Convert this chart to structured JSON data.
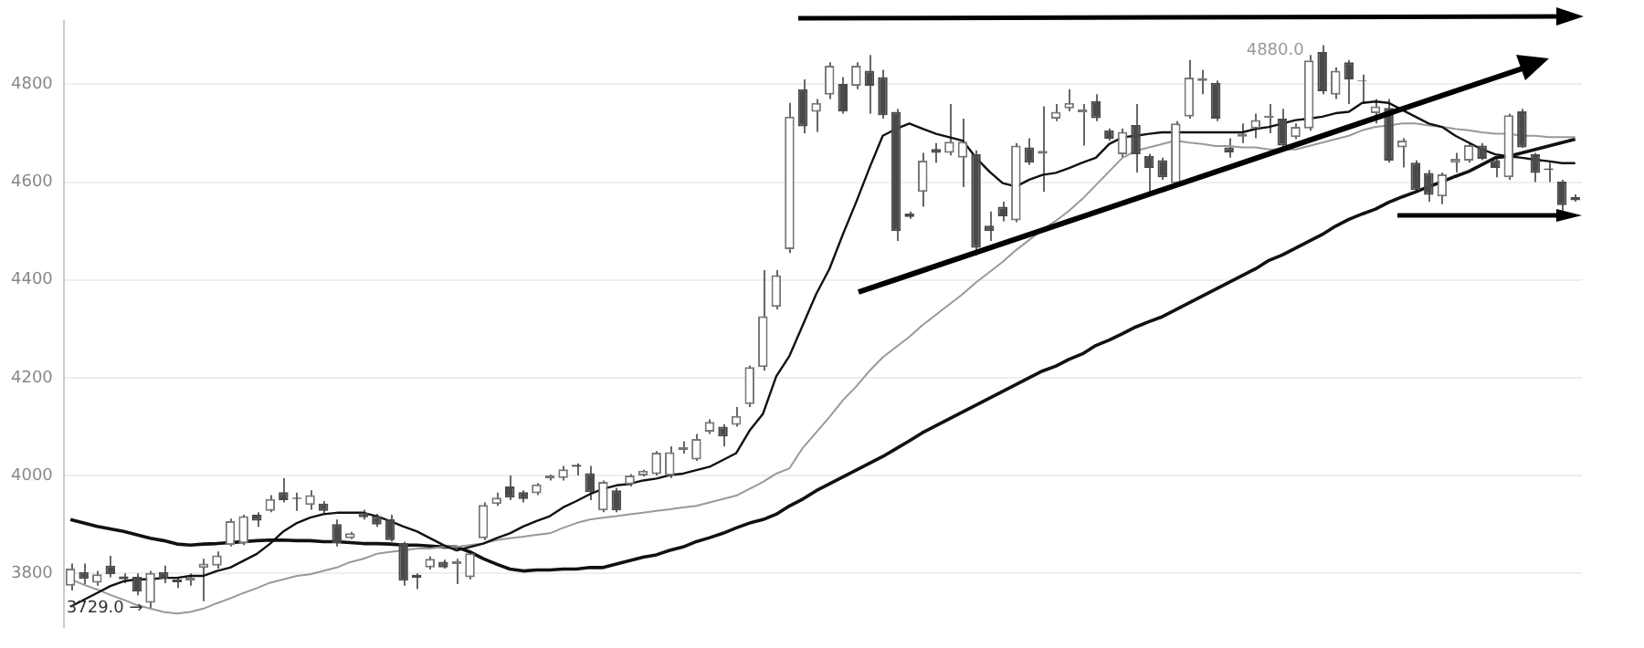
{
  "chart_data": {
    "type": "candlestick",
    "tick_labels": "y",
    "grid": "y",
    "ylim": [
      3690,
      4930
    ],
    "yticks": [
      3800,
      4000,
      4200,
      4400,
      4600,
      4800
    ],
    "categories": [
      null,
      null,
      null,
      null,
      null,
      null,
      null,
      null,
      null,
      null,
      null,
      null,
      null,
      null,
      null,
      null,
      null,
      null,
      null,
      null,
      null,
      null,
      null,
      null,
      null,
      null,
      null,
      null,
      null,
      null,
      null,
      null,
      null,
      null,
      null,
      null,
      null,
      null,
      null,
      null,
      null,
      null,
      null,
      null,
      null,
      null,
      null,
      null,
      null,
      null,
      null,
      null,
      null,
      null,
      null,
      null,
      null,
      null,
      null,
      null,
      null,
      null,
      null,
      null,
      null,
      null,
      null,
      null,
      null,
      null,
      null,
      null,
      null,
      null,
      null,
      null,
      null,
      null,
      null,
      null,
      null,
      null,
      null,
      null,
      null,
      null,
      null,
      null,
      null,
      null,
      null,
      null,
      null,
      null,
      null,
      null,
      null,
      null,
      null,
      null,
      null,
      null,
      null,
      null,
      null,
      null,
      null,
      null,
      null,
      null,
      null,
      null,
      null,
      null
    ],
    "ohlc": [
      [
        3775,
        3820,
        3765,
        3810
      ],
      [
        3803,
        3820,
        3778,
        3789
      ],
      [
        3781,
        3805,
        3775,
        3798
      ],
      [
        3816,
        3836,
        3792,
        3798
      ],
      [
        3794,
        3800,
        3780,
        3788
      ],
      [
        3793,
        3800,
        3755,
        3763
      ],
      [
        3740,
        3805,
        3729,
        3801
      ],
      [
        3803,
        3816,
        3780,
        3789
      ],
      [
        3788,
        3790,
        3770,
        3782
      ],
      [
        3785,
        3800,
        3775,
        3791
      ],
      [
        3811,
        3830,
        3743,
        3820
      ],
      [
        3816,
        3845,
        3810,
        3837
      ],
      [
        3858,
        3912,
        3855,
        3907
      ],
      [
        3861,
        3920,
        3858,
        3917
      ],
      [
        3920,
        3925,
        3895,
        3908
      ],
      [
        3928,
        3960,
        3925,
        3952
      ],
      [
        3966,
        3995,
        3945,
        3950
      ],
      [
        3955,
        3965,
        3928,
        3952
      ],
      [
        3940,
        3970,
        3930,
        3960
      ],
      [
        3943,
        3948,
        3920,
        3928
      ],
      [
        3901,
        3910,
        3855,
        3862
      ],
      [
        3872,
        3885,
        3870,
        3882
      ],
      [
        3924,
        3930,
        3910,
        3915
      ],
      [
        3917,
        3922,
        3895,
        3900
      ],
      [
        3911,
        3920,
        3865,
        3868
      ],
      [
        3862,
        3865,
        3775,
        3785
      ],
      [
        3797,
        3800,
        3768,
        3791
      ],
      [
        3812,
        3835,
        3808,
        3830
      ],
      [
        3824,
        3828,
        3810,
        3812
      ],
      [
        3819,
        3830,
        3778,
        3825
      ],
      [
        3792,
        3845,
        3788,
        3841
      ],
      [
        3872,
        3945,
        3868,
        3940
      ],
      [
        3942,
        3965,
        3938,
        3955
      ],
      [
        3978,
        4000,
        3950,
        3955
      ],
      [
        3966,
        3970,
        3945,
        3952
      ],
      [
        3964,
        3985,
        3960,
        3982
      ],
      [
        3994,
        4002,
        3990,
        4000
      ],
      [
        3995,
        4020,
        3990,
        4013
      ],
      [
        4022,
        4025,
        4000,
        4018
      ],
      [
        4005,
        4020,
        3950,
        3966
      ],
      [
        3929,
        3990,
        3925,
        3987
      ],
      [
        3970,
        3975,
        3925,
        3929
      ],
      [
        3982,
        4003,
        3978,
        4000
      ],
      [
        4000,
        4012,
        3998,
        4010
      ],
      [
        4003,
        4050,
        4000,
        4047
      ],
      [
        4000,
        4060,
        3995,
        4048
      ],
      [
        4052,
        4070,
        4045,
        4058
      ],
      [
        4033,
        4085,
        4030,
        4075
      ],
      [
        4090,
        4115,
        4085,
        4110
      ],
      [
        4100,
        4105,
        4060,
        4080
      ],
      [
        4104,
        4140,
        4100,
        4122
      ],
      [
        4146,
        4225,
        4140,
        4222
      ],
      [
        4222,
        4420,
        4215,
        4326
      ],
      [
        4345,
        4420,
        4340,
        4410
      ],
      [
        4463,
        4762,
        4455,
        4734
      ],
      [
        4790,
        4810,
        4700,
        4714
      ],
      [
        4744,
        4770,
        4703,
        4762
      ],
      [
        4779,
        4845,
        4770,
        4838
      ],
      [
        4801,
        4815,
        4740,
        4745
      ],
      [
        4797,
        4845,
        4790,
        4838
      ],
      [
        4828,
        4860,
        4740,
        4797
      ],
      [
        4815,
        4830,
        4730,
        4737
      ],
      [
        4744,
        4750,
        4480,
        4500
      ],
      [
        4536,
        4540,
        4525,
        4529
      ],
      [
        4580,
        4660,
        4550,
        4644
      ],
      [
        4668,
        4680,
        4640,
        4660
      ],
      [
        4660,
        4760,
        4655,
        4683
      ],
      [
        4650,
        4730,
        4590,
        4683
      ],
      [
        4657,
        4665,
        4450,
        4466
      ],
      [
        4511,
        4540,
        4480,
        4500
      ],
      [
        4550,
        4560,
        4520,
        4530
      ],
      [
        4522,
        4680,
        4518,
        4675
      ],
      [
        4671,
        4690,
        4635,
        4640
      ],
      [
        4658,
        4755,
        4580,
        4664
      ],
      [
        4730,
        4760,
        4725,
        4744
      ],
      [
        4751,
        4790,
        4745,
        4762
      ],
      [
        4743,
        4760,
        4675,
        4749
      ],
      [
        4766,
        4780,
        4725,
        4731
      ],
      [
        4706,
        4710,
        4685,
        4689
      ],
      [
        4657,
        4710,
        4650,
        4703
      ],
      [
        4717,
        4760,
        4620,
        4657
      ],
      [
        4654,
        4658,
        4580,
        4629
      ],
      [
        4645,
        4650,
        4605,
        4610
      ],
      [
        4598,
        4725,
        4595,
        4720
      ],
      [
        4734,
        4850,
        4730,
        4814
      ],
      [
        4807,
        4830,
        4780,
        4813
      ],
      [
        4803,
        4808,
        4725,
        4730
      ],
      [
        4671,
        4690,
        4650,
        4661
      ],
      [
        4693,
        4720,
        4680,
        4699
      ],
      [
        4710,
        4740,
        4690,
        4727
      ],
      [
        4732,
        4760,
        4700,
        4736
      ],
      [
        4730,
        4750,
        4670,
        4675
      ],
      [
        4692,
        4720,
        4688,
        4713
      ],
      [
        4710,
        4860,
        4705,
        4849
      ],
      [
        4866,
        4880,
        4780,
        4786
      ],
      [
        4779,
        4835,
        4770,
        4828
      ],
      [
        4845,
        4850,
        4760,
        4810
      ],
      [
        4808,
        4820,
        4760,
        4806
      ],
      [
        4741,
        4770,
        4720,
        4755
      ],
      [
        4752,
        4770,
        4640,
        4644
      ],
      [
        4671,
        4690,
        4630,
        4685
      ],
      [
        4640,
        4645,
        4580,
        4584
      ],
      [
        4619,
        4625,
        4560,
        4574
      ],
      [
        4571,
        4620,
        4555,
        4616
      ],
      [
        4640,
        4660,
        4620,
        4648
      ],
      [
        4644,
        4680,
        4640,
        4676
      ],
      [
        4675,
        4680,
        4645,
        4648
      ],
      [
        4645,
        4650,
        4610,
        4629
      ],
      [
        4610,
        4740,
        4605,
        4737
      ],
      [
        4745,
        4750,
        4670,
        4671
      ],
      [
        4657,
        4660,
        4600,
        4619
      ],
      [
        4628,
        4640,
        4600,
        4625
      ],
      [
        4601,
        4605,
        4540,
        4553
      ],
      [
        4570,
        4575,
        4560,
        4563
      ]
    ],
    "series": [
      {
        "type": "line",
        "color": "#111111",
        "values": [
          3732,
          3746,
          3760,
          3774,
          3784,
          3788,
          3788,
          3791,
          3791,
          3795,
          3795,
          3805,
          3812,
          3826,
          3840,
          3861,
          3886,
          3903,
          3914,
          3921,
          3924,
          3924,
          3924,
          3917,
          3907,
          3896,
          3886,
          3872,
          3858,
          3847,
          3854,
          3861,
          3872,
          3882,
          3896,
          3907,
          3917,
          3935,
          3948,
          3962,
          3973,
          3980,
          3983,
          3990,
          3994,
          4001,
          4004,
          4011,
          4018,
          4032,
          4046,
          4092,
          4126,
          4203,
          4245,
          4308,
          4371,
          4423,
          4493,
          4559,
          4629,
          4695,
          4709,
          4720,
          4709,
          4699,
          4692,
          4685,
          4650,
          4622,
          4598,
          4591,
          4605,
          4615,
          4619,
          4629,
          4640,
          4650,
          4678,
          4692,
          4695,
          4699,
          4702,
          4702,
          4702,
          4702,
          4702,
          4702,
          4702,
          4709,
          4713,
          4720,
          4727,
          4730,
          4734,
          4741,
          4744,
          4762,
          4765,
          4762,
          4748,
          4734,
          4720,
          4713,
          4695,
          4681,
          4667,
          4657,
          4653,
          4650,
          4646,
          4643,
          4639,
          4639
        ]
      },
      {
        "type": "line",
        "color": "#999999",
        "values": [
          3788,
          3777,
          3767,
          3756,
          3746,
          3735,
          3728,
          3721,
          3718,
          3721,
          3728,
          3739,
          3749,
          3760,
          3770,
          3781,
          3788,
          3795,
          3798,
          3805,
          3812,
          3823,
          3830,
          3840,
          3844,
          3847,
          3851,
          3851,
          3854,
          3854,
          3858,
          3861,
          3868,
          3872,
          3875,
          3879,
          3882,
          3893,
          3903,
          3910,
          3914,
          3917,
          3921,
          3924,
          3928,
          3931,
          3935,
          3938,
          3945,
          3952,
          3959,
          3973,
          3987,
          4004,
          4015,
          4057,
          4088,
          4120,
          4154,
          4182,
          4214,
          4242,
          4263,
          4284,
          4308,
          4329,
          4350,
          4371,
          4395,
          4416,
          4437,
          4461,
          4482,
          4503,
          4521,
          4542,
          4566,
          4594,
          4622,
          4650,
          4664,
          4671,
          4678,
          4685,
          4681,
          4678,
          4674,
          4674,
          4671,
          4671,
          4667,
          4667,
          4667,
          4674,
          4681,
          4688,
          4695,
          4706,
          4713,
          4716,
          4720,
          4720,
          4716,
          4713,
          4709,
          4706,
          4702,
          4699,
          4699,
          4695,
          4695,
          4692,
          4692,
          4692
        ]
      },
      {
        "type": "line",
        "color": "#111111",
        "values": [
          3910,
          3903,
          3896,
          3891,
          3886,
          3879,
          3872,
          3867,
          3860,
          3858,
          3860,
          3861,
          3863,
          3865,
          3867,
          3868,
          3868,
          3867,
          3867,
          3865,
          3865,
          3863,
          3861,
          3861,
          3860,
          3858,
          3858,
          3856,
          3854,
          3854,
          3844,
          3830,
          3819,
          3809,
          3805,
          3807,
          3807,
          3809,
          3809,
          3812,
          3812,
          3819,
          3826,
          3833,
          3838,
          3847,
          3854,
          3865,
          3873,
          3882,
          3893,
          3903,
          3910,
          3921,
          3938,
          3952,
          3969,
          3983,
          3997,
          4011,
          4025,
          4039,
          4055,
          4071,
          4088,
          4102,
          4116,
          4130,
          4144,
          4158,
          4172,
          4186,
          4200,
          4214,
          4224,
          4238,
          4249,
          4266,
          4277,
          4290,
          4304,
          4315,
          4325,
          4339,
          4353,
          4367,
          4381,
          4395,
          4409,
          4423,
          4440,
          4451,
          4465,
          4479,
          4493,
          4510,
          4524,
          4535,
          4545,
          4559,
          4570,
          4580,
          4591,
          4601,
          4612,
          4622,
          4636,
          4650,
          4653,
          4660,
          4667,
          4674,
          4681,
          4688
        ]
      }
    ],
    "annotations": [
      "3729.0 →",
      "4880.0"
    ]
  }
}
